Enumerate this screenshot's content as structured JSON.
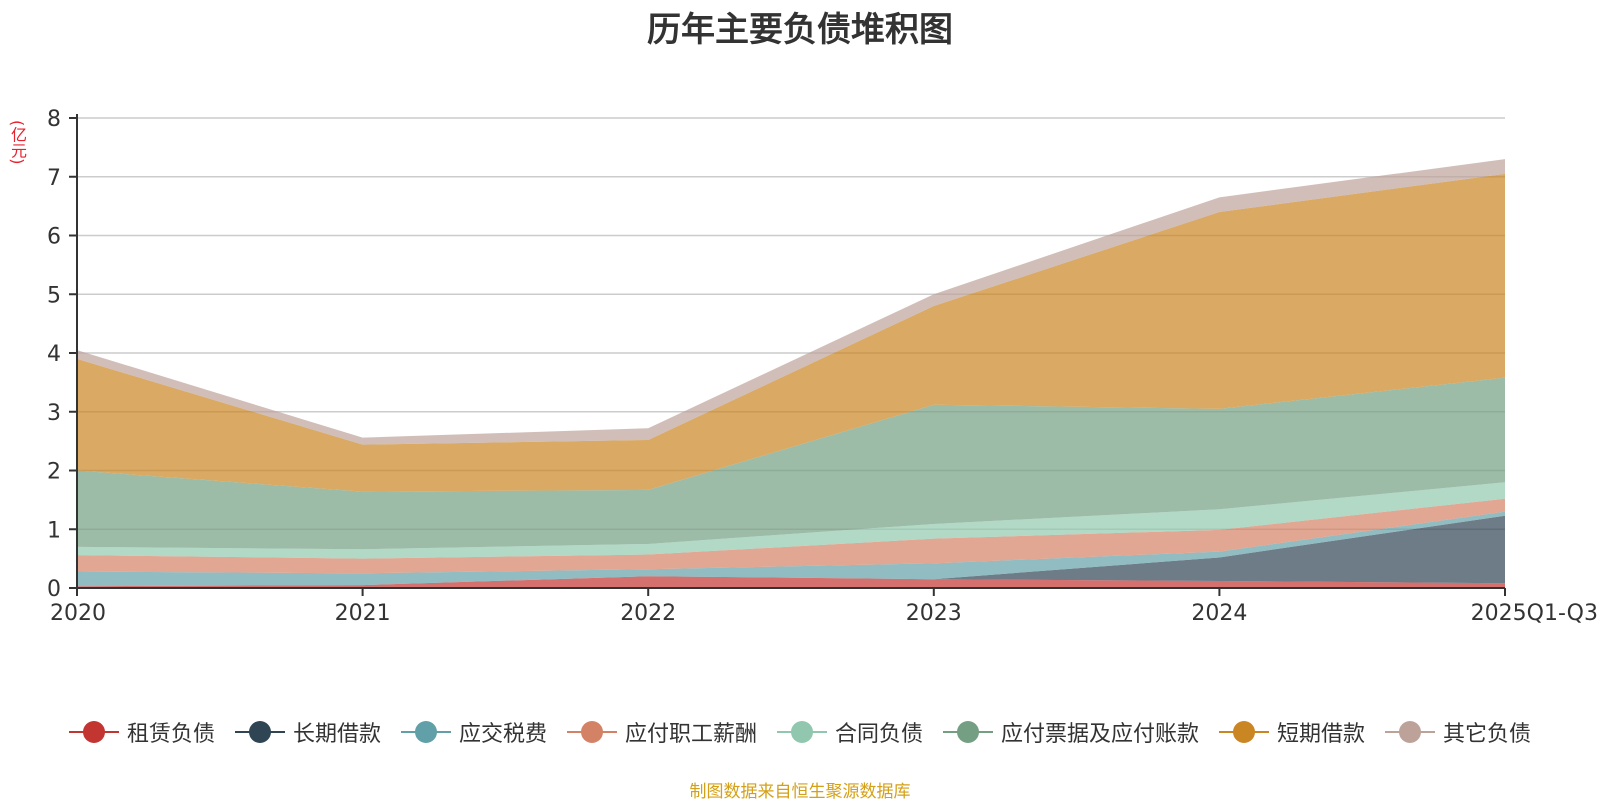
{
  "chart_data": {
    "type": "area",
    "stacked": true,
    "title": "历年主要负债堆积图",
    "ylabel": "(亿元)",
    "xlabel": "",
    "ylim": [
      0,
      8
    ],
    "yticks": [
      0,
      1,
      2,
      3,
      4,
      5,
      6,
      7,
      8
    ],
    "categories": [
      "2020",
      "2021",
      "2022",
      "2023",
      "2024",
      "2025Q1-Q3"
    ],
    "series": [
      {
        "name": "租赁负债",
        "color": "#c23531",
        "values": [
          0.03,
          0.05,
          0.2,
          0.15,
          0.12,
          0.08
        ]
      },
      {
        "name": "长期借款",
        "color": "#2f4554",
        "values": [
          0.0,
          0.0,
          0.0,
          0.0,
          0.4,
          1.15
        ]
      },
      {
        "name": "应交税费",
        "color": "#61a0a8",
        "values": [
          0.25,
          0.2,
          0.12,
          0.27,
          0.1,
          0.07
        ]
      },
      {
        "name": "应付职工薪酬",
        "color": "#d48265",
        "values": [
          0.28,
          0.25,
          0.25,
          0.42,
          0.37,
          0.22
        ]
      },
      {
        "name": "合同负债",
        "color": "#91c7ae",
        "values": [
          0.14,
          0.16,
          0.18,
          0.25,
          0.35,
          0.28
        ]
      },
      {
        "name": "应付票据及应付账款",
        "color": "#749f83",
        "values": [
          1.3,
          0.98,
          0.92,
          2.03,
          1.71,
          1.78
        ]
      },
      {
        "name": "短期借款",
        "color": "#ca8622",
        "values": [
          1.9,
          0.8,
          0.85,
          1.68,
          3.35,
          3.47
        ]
      },
      {
        "name": "其它负债",
        "color": "#bda29a",
        "values": [
          0.15,
          0.12,
          0.2,
          0.2,
          0.25,
          0.25
        ]
      }
    ],
    "legend_position": "bottom",
    "grid": true
  },
  "footer": {
    "source": "制图数据来自恒生聚源数据库"
  }
}
